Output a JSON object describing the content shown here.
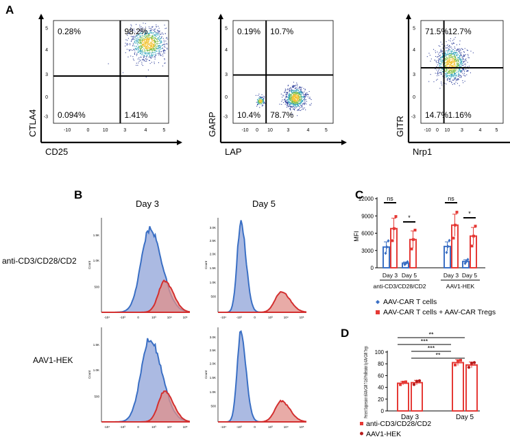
{
  "panel_labels": {
    "a": "A",
    "b": "B",
    "c": "C",
    "d": "D"
  },
  "colors": {
    "blue": "#3a6fc4",
    "red": "#d32f2f",
    "blue_fill": "#8fa3d8",
    "red_fill": "#e08f8a",
    "bar_red": "#e53935",
    "dark_red": "#b71c1c"
  },
  "chart_data": [
    {
      "type": "scatter",
      "subtype": "flow-cytometry-quadrants",
      "panel": "A",
      "plots": [
        {
          "xlabel": "CD25",
          "ylabel": "CTLA4",
          "quadrants": {
            "upper_left": "0.28%",
            "upper_right": "98.2%",
            "lower_left": "0.094%",
            "lower_right": "1.41%"
          },
          "x_ticks": [
            "-10",
            "0",
            "10",
            "3",
            "4",
            "5"
          ],
          "y_ticks": [
            "5",
            "4",
            "3",
            "0",
            "-3"
          ],
          "populations": [
            {
              "cx": 0.82,
              "cy": 0.78,
              "spread": 0.18
            }
          ]
        },
        {
          "xlabel": "LAP",
          "ylabel": "GARP",
          "quadrants": {
            "upper_left": "0.19%",
            "upper_right": "10.7%",
            "lower_left": "10.4%",
            "lower_right": "78.7%"
          },
          "x_ticks": [
            "-10",
            "0",
            "10",
            "3",
            "4",
            "5"
          ],
          "y_ticks": [
            "5",
            "4",
            "3",
            "0",
            "-3"
          ],
          "populations": [
            {
              "cx": 0.27,
              "cy": 0.22,
              "spread": 0.05
            },
            {
              "cx": 0.62,
              "cy": 0.25,
              "spread": 0.12
            }
          ]
        },
        {
          "xlabel": "Nrp1",
          "ylabel": "GITR",
          "quadrants": {
            "upper_left": "71.5%",
            "upper_right": "12.7%",
            "lower_left": "14.7%",
            "lower_right": "1.16%"
          },
          "x_ticks": [
            "-10",
            "0",
            "10",
            "3",
            "4",
            "5"
          ],
          "y_ticks": [
            "5",
            "4",
            "3",
            "0",
            "-3"
          ],
          "populations": [
            {
              "cx": 0.36,
              "cy": 0.58,
              "spread": 0.2
            }
          ]
        }
      ]
    },
    {
      "type": "area",
      "subtype": "histogram-overlay",
      "panel": "B",
      "columns": [
        "Day 3",
        "Day 5"
      ],
      "rows": [
        "anti-CD3/CD28/CD2",
        "AAV1-HEK"
      ],
      "ylabel": "Count",
      "y_ticks_day3": [
        "1.5K",
        "1.0K",
        "500"
      ],
      "y_ticks_day5": [
        "3.0K",
        "2.5K",
        "2.0K",
        "1.5K",
        "1.0K",
        "500"
      ],
      "x_ticks": [
        "-10⁴",
        "-10³",
        "0",
        "10³",
        "10⁴",
        "10⁵"
      ],
      "series": [
        "AAV-CAR T cells",
        "AAV-CAR T cells + AAV-CAR Tregs"
      ],
      "peaks": {
        "day3": {
          "blue": {
            "pos": 0.55,
            "height": 0.88
          },
          "red": {
            "pos": 0.72,
            "height": 0.33
          }
        },
        "day5": {
          "blue": {
            "pos": 0.26,
            "height": 0.94
          },
          "red": {
            "pos": 0.72,
            "height": 0.22
          }
        }
      }
    },
    {
      "type": "bar",
      "panel": "C",
      "ylabel": "MFI",
      "ylim": [
        0,
        12000
      ],
      "y_ticks": [
        0,
        3000,
        6000,
        9000,
        12000
      ],
      "groups": [
        {
          "label": "anti-CD3/CD28/CD2",
          "sub": [
            "Day 3",
            "Day 5"
          ]
        },
        {
          "label": "AAV1-HEK",
          "sub": [
            "Day 3",
            "Day 5"
          ]
        }
      ],
      "series": [
        {
          "name": "AAV-CAR T cells",
          "values": [
            3600,
            800,
            3700,
            1100
          ],
          "errors": [
            900,
            200,
            800,
            300
          ]
        },
        {
          "name": "AAV-CAR T cells + AAV-CAR Tregs",
          "values": [
            6800,
            4900,
            7400,
            5500
          ],
          "errors": [
            1800,
            1500,
            1900,
            1500
          ]
        }
      ],
      "significance": [
        "ns",
        "*",
        "ns",
        "*"
      ]
    },
    {
      "type": "bar",
      "panel": "D",
      "ylabel": "Percent Suppression of AAV-CAR T Cell Proliferation by AAV-CAR Tregs",
      "ylim": [
        0,
        100
      ],
      "y_ticks": [
        0,
        20,
        40,
        60,
        80,
        100
      ],
      "categories": [
        "Day 3",
        "Day 5"
      ],
      "series": [
        {
          "name": "anti-CD3/CD28/CD2",
          "values": [
            47,
            82
          ],
          "errors": [
            3,
            5
          ]
        },
        {
          "name": "AAV1-HEK",
          "values": [
            48,
            78
          ],
          "errors": [
            4,
            5
          ]
        }
      ],
      "significance": [
        "**",
        "***",
        "***",
        "**"
      ]
    }
  ]
}
